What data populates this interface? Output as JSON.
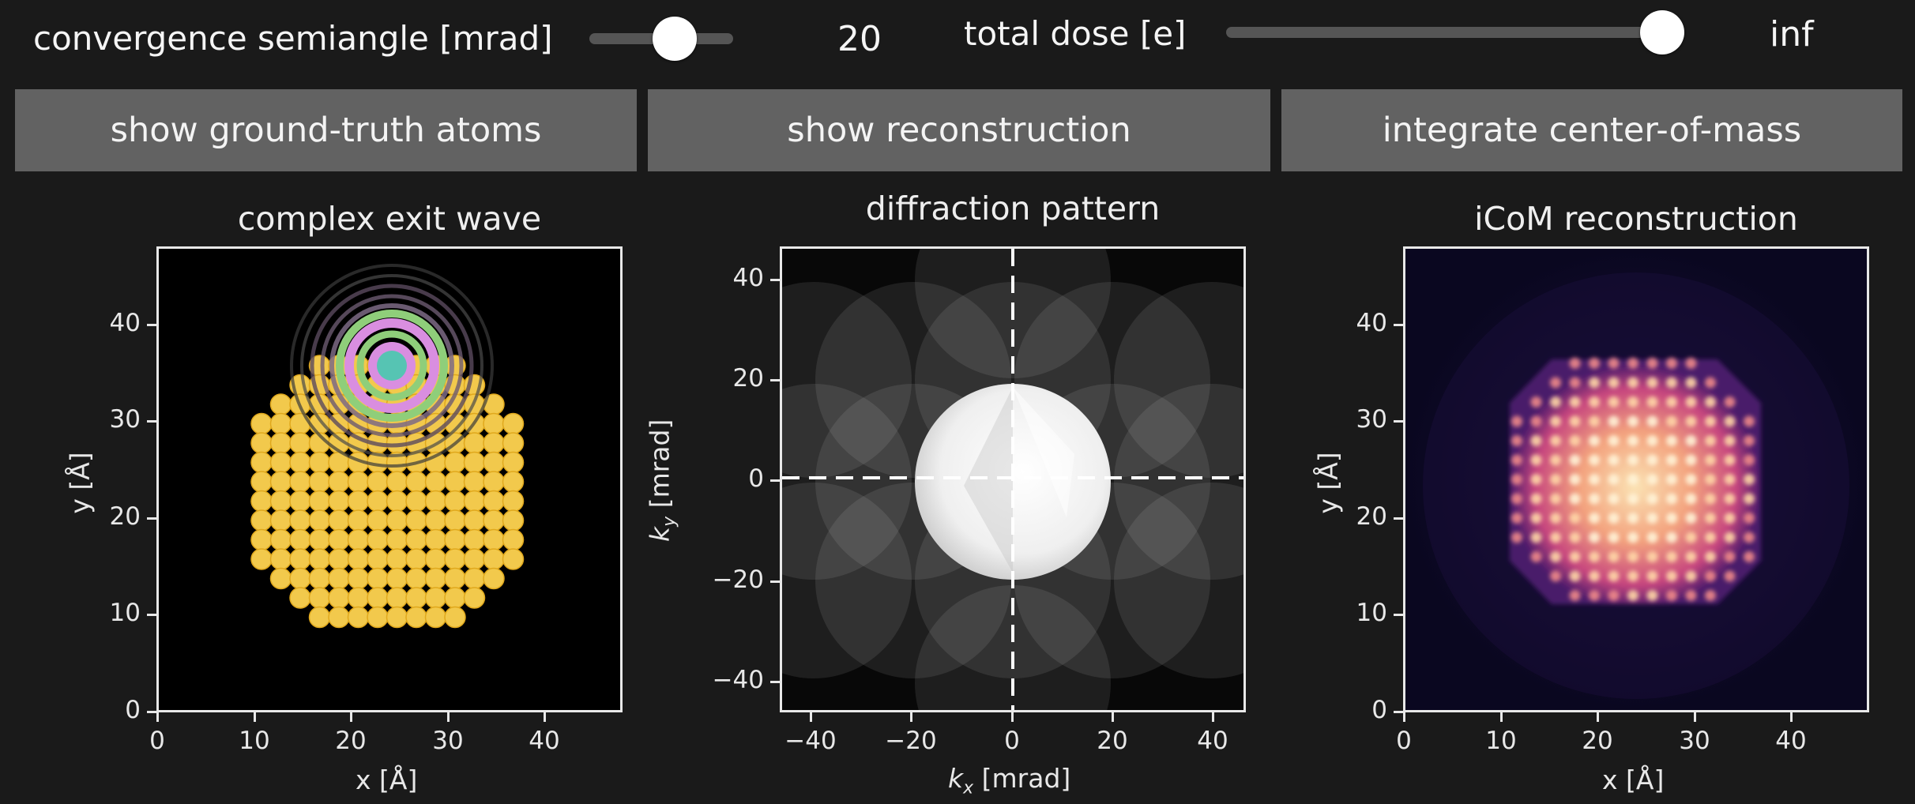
{
  "controls": {
    "semiangle": {
      "label": "convergence semiangle [mrad]",
      "value": "20",
      "fraction": 0.6
    },
    "dose": {
      "label": "total dose [e]",
      "value": "inf",
      "fraction": 1.0
    }
  },
  "buttons": {
    "atoms": "show ground-truth atoms",
    "reconstruction": "show reconstruction",
    "integrate": "integrate center-of-mass"
  },
  "panels": {
    "exit_wave": {
      "title": "complex exit wave",
      "xlabel": "x [Å]",
      "ylabel": "y [Å]",
      "xticks": [
        "0",
        "10",
        "20",
        "30",
        "40"
      ],
      "yticks": [
        "0",
        "10",
        "20",
        "30",
        "40"
      ]
    },
    "diffraction": {
      "title": "diffraction pattern",
      "xlabel_main": "k",
      "xlabel_sub": "x",
      "xlabel_unit": " [mrad]",
      "ylabel_main": "k",
      "ylabel_sub": "y",
      "ylabel_unit": " [mrad]",
      "xticks": [
        "−40",
        "−20",
        "0",
        "20",
        "40"
      ],
      "yticks": [
        "40",
        "20",
        "0",
        "−20",
        "−40"
      ]
    },
    "icom": {
      "title": "iCoM reconstruction",
      "xlabel": "x [Å]",
      "ylabel": "y [Å]",
      "xticks": [
        "0",
        "10",
        "20",
        "30",
        "40"
      ],
      "yticks": [
        "0",
        "10",
        "20",
        "30",
        "40"
      ]
    }
  },
  "colors": {
    "background": "#1a1a1a",
    "button": "#626262",
    "atom_fill": "#f2c94c",
    "atom_edge": "#e0a81c",
    "probe_pink": "#d98ee0",
    "probe_green": "#8fce7a",
    "probe_teal": "#56c4b3"
  }
}
